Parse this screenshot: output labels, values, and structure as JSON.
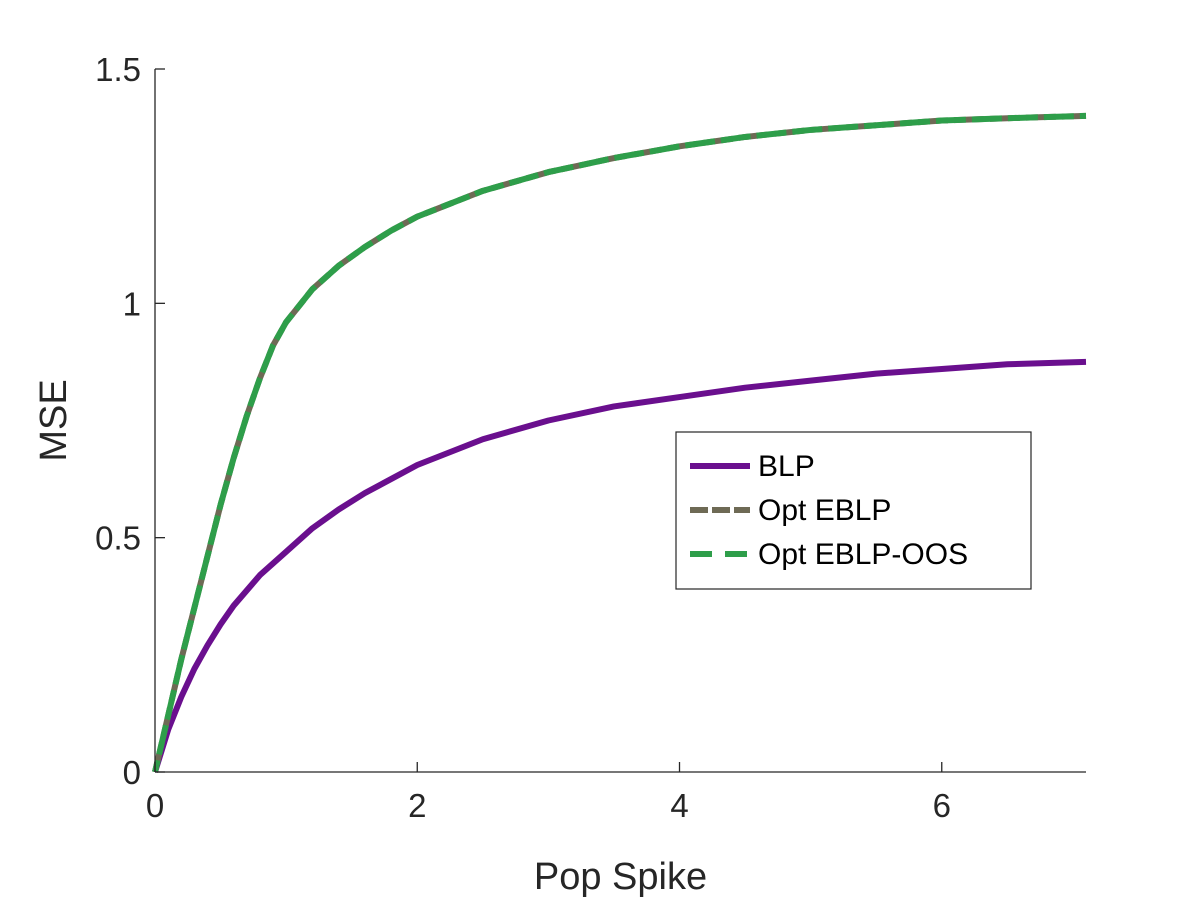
{
  "chart_data": {
    "type": "line",
    "title": "",
    "xlabel": "Pop Spike",
    "ylabel": "MSE",
    "xlim": [
      0,
      7.1
    ],
    "ylim": [
      0,
      1.5
    ],
    "xticks": [
      0,
      2,
      4,
      6
    ],
    "yticks": [
      0,
      0.5,
      1,
      1.5
    ],
    "xtick_labels": [
      "0",
      "2",
      "4",
      "6"
    ],
    "ytick_labels": [
      "0",
      "0.5",
      "1",
      "1.5"
    ],
    "grid": false,
    "legend_position": "right",
    "series": [
      {
        "name": "BLP",
        "color": "#6a0f8e",
        "style": "solid",
        "x": [
          0,
          0.1,
          0.2,
          0.3,
          0.4,
          0.5,
          0.6,
          0.8,
          1.0,
          1.2,
          1.4,
          1.6,
          1.8,
          2.0,
          2.5,
          3.0,
          3.5,
          4.0,
          4.5,
          5.0,
          5.5,
          6.0,
          6.5,
          7.1
        ],
        "y": [
          0,
          0.09,
          0.16,
          0.22,
          0.27,
          0.315,
          0.355,
          0.42,
          0.47,
          0.52,
          0.56,
          0.595,
          0.625,
          0.655,
          0.71,
          0.75,
          0.78,
          0.8,
          0.82,
          0.835,
          0.85,
          0.86,
          0.87,
          0.875
        ]
      },
      {
        "name": "Opt EBLP",
        "color": "#6e6a55",
        "style": "dashed",
        "x": [
          0,
          0.1,
          0.2,
          0.3,
          0.4,
          0.5,
          0.6,
          0.7,
          0.8,
          0.9,
          1.0,
          1.2,
          1.4,
          1.6,
          1.8,
          2.0,
          2.5,
          3.0,
          3.5,
          4.0,
          4.5,
          5.0,
          5.5,
          6.0,
          6.5,
          7.1
        ],
        "y": [
          0,
          0.12,
          0.24,
          0.35,
          0.46,
          0.57,
          0.67,
          0.76,
          0.84,
          0.91,
          0.96,
          1.03,
          1.08,
          1.12,
          1.155,
          1.185,
          1.24,
          1.28,
          1.31,
          1.335,
          1.355,
          1.37,
          1.38,
          1.39,
          1.395,
          1.4
        ]
      },
      {
        "name": "Opt EBLP-OOS",
        "color": "#2e9e4a",
        "style": "dashed",
        "x": [
          0,
          0.1,
          0.2,
          0.3,
          0.4,
          0.5,
          0.6,
          0.7,
          0.8,
          0.9,
          1.0,
          1.2,
          1.4,
          1.6,
          1.8,
          2.0,
          2.5,
          3.0,
          3.5,
          4.0,
          4.5,
          5.0,
          5.5,
          6.0,
          6.5,
          7.1
        ],
        "y": [
          0,
          0.12,
          0.24,
          0.35,
          0.46,
          0.57,
          0.67,
          0.76,
          0.84,
          0.91,
          0.96,
          1.03,
          1.08,
          1.12,
          1.155,
          1.185,
          1.24,
          1.28,
          1.31,
          1.335,
          1.355,
          1.37,
          1.38,
          1.39,
          1.395,
          1.4
        ]
      }
    ]
  }
}
